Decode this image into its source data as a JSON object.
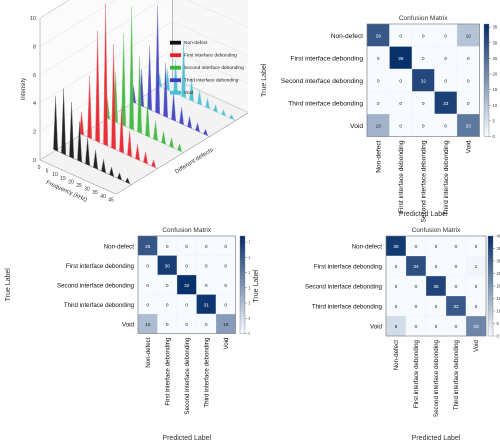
{
  "chart_data": [
    {
      "type": "area",
      "subtype": "3d-waterfall-spectra",
      "title": "",
      "zlabel": "Intensity",
      "xlabel": "Frequency (kHz)",
      "ylabel": "Different defects",
      "zlim": [
        0,
        10
      ],
      "z_ticks": [
        "0",
        "2",
        "4",
        "6",
        "8",
        "10"
      ],
      "x_ticks": [
        "0",
        "5",
        "10",
        "15",
        "20",
        "25",
        "30",
        "35",
        "40",
        "45"
      ],
      "legend_position": "top-right",
      "series": [
        {
          "name": "Non-defect",
          "color": "#111111",
          "peaks": [
            3.8,
            4.6,
            3.9,
            2.8,
            1.9,
            1.3,
            0.9,
            0.6,
            0.45,
            0.35
          ]
        },
        {
          "name": "First interface debonding",
          "color": "#e8202a",
          "peaks": [
            1.6,
            4.4,
            7.8,
            10.0,
            7.4,
            3.2,
            1.8,
            1.1,
            0.8,
            0.5
          ]
        },
        {
          "name": "Second interface debonding",
          "color": "#3cb73a",
          "peaks": [
            1.4,
            3.5,
            6.5,
            8.6,
            5.4,
            2.6,
            1.4,
            0.9,
            0.7,
            0.5
          ]
        },
        {
          "name": "Third interface debonding",
          "color": "#3d3ec2",
          "peaks": [
            1.2,
            2.6,
            4.5,
            7.6,
            3.8,
            2.0,
            1.2,
            0.8,
            0.6,
            0.4
          ]
        },
        {
          "name": "Void",
          "color": "#49bfd2",
          "peaks": [
            0.9,
            1.5,
            2.4,
            4.0,
            1.6,
            1.0,
            0.7,
            0.5,
            0.4,
            0.3
          ]
        }
      ]
    },
    {
      "type": "heatmap",
      "title": "Confusion Matrix",
      "xlabel": "Predicted Label",
      "ylabel": "True Label",
      "labels": [
        "Non-defect",
        "First interface debonding",
        "Second interface debonding",
        "Third interface debonding",
        "Void"
      ],
      "values": [
        [
          29,
          0,
          0,
          0,
          10
        ],
        [
          0,
          36,
          0,
          0,
          0
        ],
        [
          0,
          0,
          32,
          0,
          0
        ],
        [
          0,
          0,
          0,
          33,
          0
        ],
        [
          13,
          0,
          0,
          0,
          23
        ]
      ],
      "colorbar_range": [
        0,
        36
      ],
      "colorbar_ticks": [
        0,
        5,
        10,
        15,
        20,
        25,
        30,
        35
      ]
    },
    {
      "type": "heatmap",
      "title": "Confusion Matrix",
      "xlabel": "Predicted Label",
      "ylabel": "True Label",
      "labels": [
        "Non-defect",
        "First interface debonding",
        "Second interface debonding",
        "Third interface debonding",
        "Void"
      ],
      "values": [
        [
          26,
          0,
          0,
          0,
          0
        ],
        [
          0,
          30,
          0,
          0,
          0
        ],
        [
          0,
          0,
          32,
          0,
          0
        ],
        [
          0,
          0,
          0,
          31,
          0
        ],
        [
          10,
          0,
          0,
          0,
          15
        ]
      ],
      "colorbar_range": [
        0,
        32
      ],
      "colorbar_ticks": [
        0,
        5,
        10,
        15,
        20,
        25,
        30
      ]
    },
    {
      "type": "heatmap",
      "title": "Confusion Matrix",
      "xlabel": "Predicted Label",
      "ylabel": "True Label",
      "labels": [
        "Non-defect",
        "First interface debonding",
        "Second interface debonding",
        "Third interface debonding",
        "Void"
      ],
      "values": [
        [
          38,
          0,
          0,
          0,
          0
        ],
        [
          0,
          34,
          0,
          0,
          1
        ],
        [
          0,
          0,
          36,
          0,
          0
        ],
        [
          0,
          0,
          0,
          32,
          0
        ],
        [
          6,
          0,
          0,
          0,
          23
        ]
      ],
      "colorbar_range": [
        0,
        40
      ],
      "colorbar_ticks": [
        0,
        5,
        10,
        15,
        20,
        25,
        30,
        35,
        40
      ]
    }
  ]
}
